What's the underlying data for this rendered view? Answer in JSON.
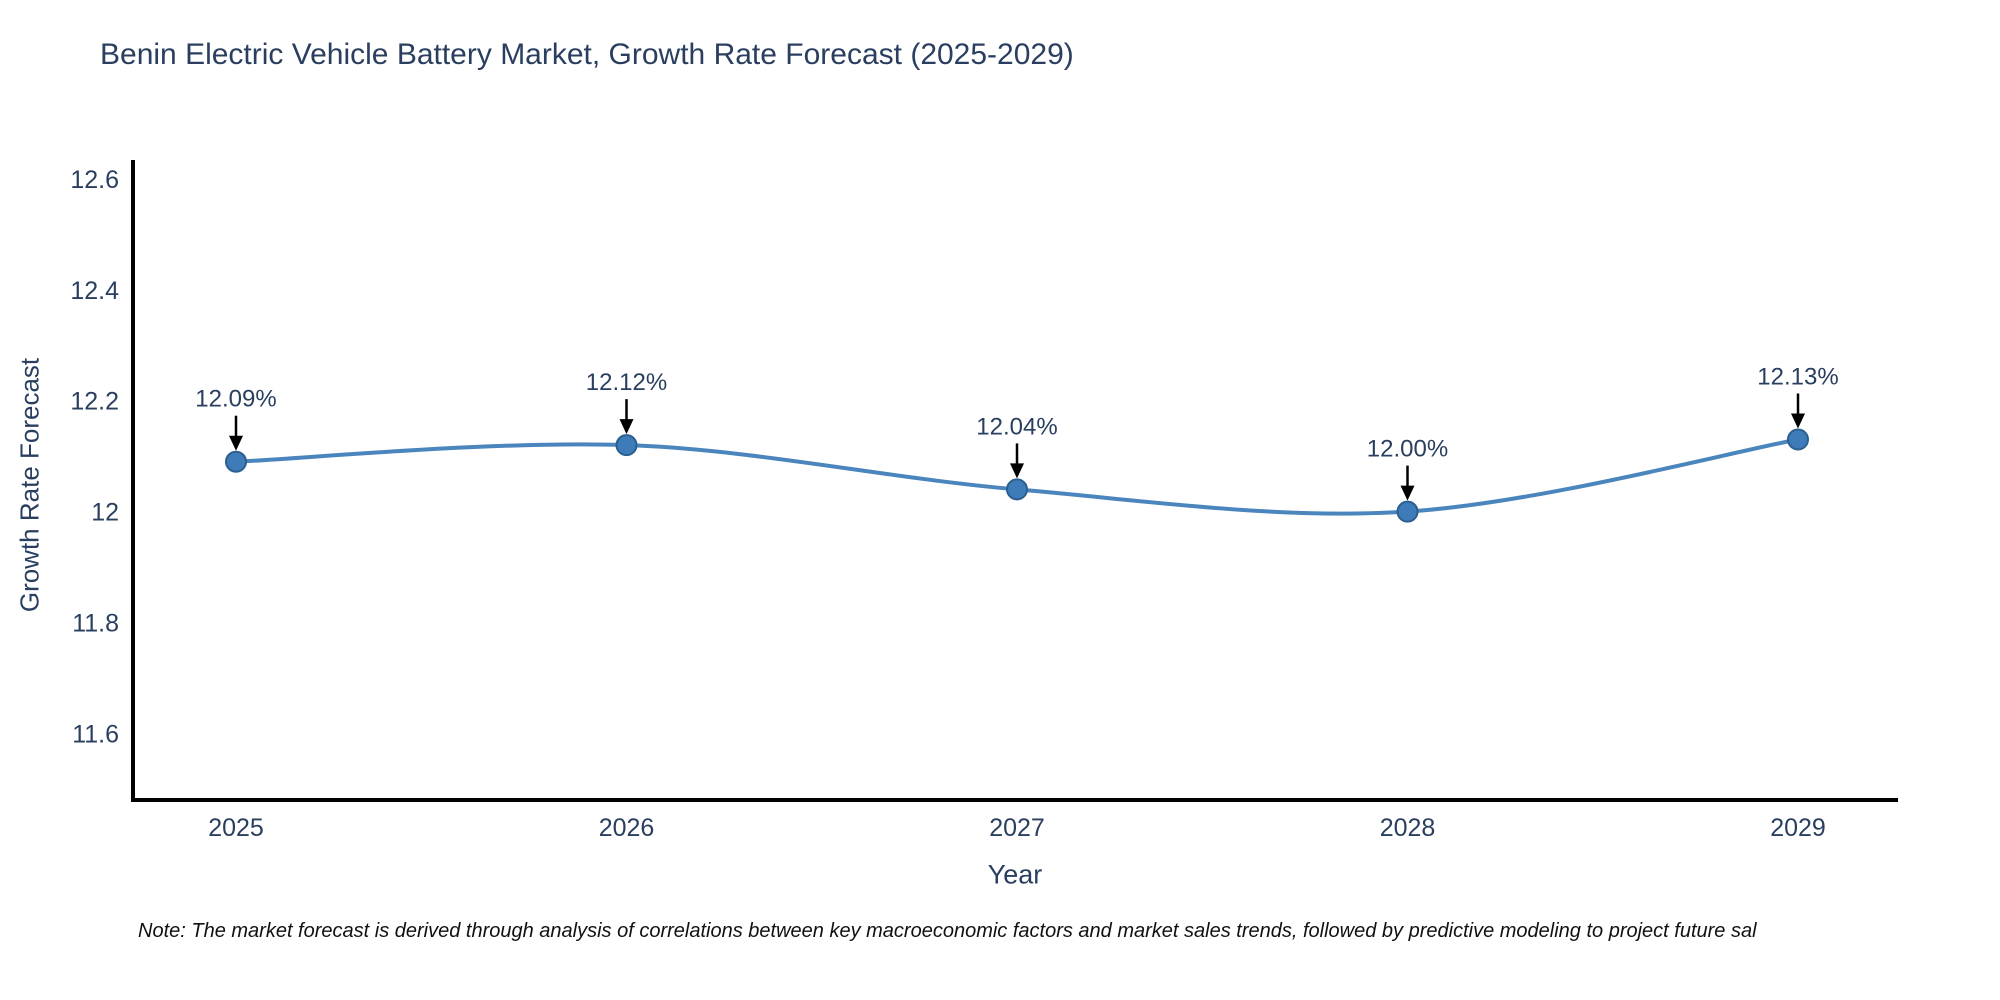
{
  "chart_data": {
    "type": "line",
    "title": "Benin Electric Vehicle Battery Market, Growth Rate Forecast (2025-2029)",
    "xlabel": "Year",
    "ylabel": "Growth Rate Forecast",
    "categories": [
      "2025",
      "2026",
      "2027",
      "2028",
      "2029"
    ],
    "values": [
      12.09,
      12.12,
      12.04,
      12.0,
      12.13
    ],
    "point_labels": [
      "12.09%",
      "12.12%",
      "12.04%",
      "12.00%",
      "12.13%"
    ],
    "ytick_values": [
      11.6,
      11.8,
      12,
      12.2,
      12.4,
      12.6
    ],
    "ytick_labels": [
      "11.6",
      "11.8",
      "12",
      "12.2",
      "12.4",
      "12.6"
    ],
    "ylim": [
      11.48,
      12.634
    ],
    "grid": false,
    "legend": "none",
    "line_shape": "spline",
    "annotation_style": "text-with-down-arrow",
    "colors": {
      "line": "#4a86bd",
      "marker_fill": "#3d7cb8",
      "marker_edge": "#2a5f8f",
      "axis": "#000000",
      "text": "#2a3f5f",
      "arrow": "#000000",
      "note_text": "#111111",
      "background": "#ffffff"
    },
    "note": "Note: The market forecast is derived through analysis of correlations between key macroeconomic factors and market sales trends, followed by predictive modeling to project future sal"
  }
}
